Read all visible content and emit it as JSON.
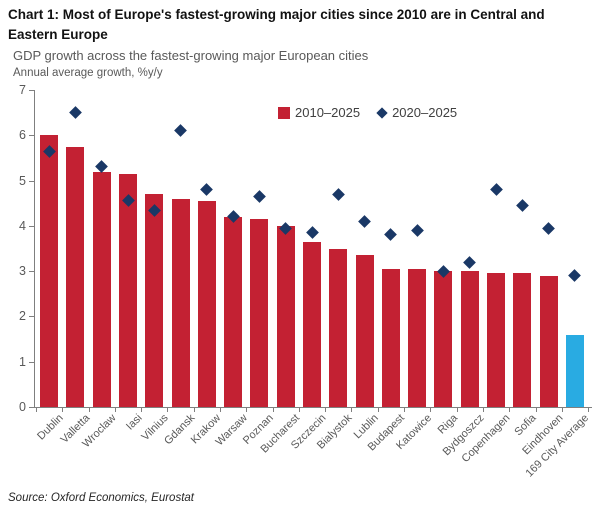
{
  "header": {
    "title": "Chart 1: Most of Europe's fastest-growing major cities since 2010 are in Central and Eastern Europe",
    "subtitle": "GDP growth across the fastest-growing major European cities",
    "axis_note": "Annual average growth, %y/y"
  },
  "legend": {
    "series1_label": "2010–2025",
    "series2_label": "2020–2025"
  },
  "footer": {
    "source": "Source: Oxford Economics, Eurostat"
  },
  "chart_data": {
    "type": "bar",
    "title": "Chart 1: Most of Europe's fastest-growing major cities since 2010 are in Central and Eastern Europe",
    "subtitle": "GDP growth across the fastest-growing major European cities",
    "ylabel": "Annual average growth, %y/y",
    "ylim": [
      0,
      7
    ],
    "ytick_step": 1,
    "grid": false,
    "legend_position": "top-inside",
    "categories": [
      "Dublin",
      "Valletta",
      "Wroclaw",
      "Iasi",
      "Vilnius",
      "Gdansk",
      "Krakow",
      "Warsaw",
      "Poznan",
      "Bucharest",
      "Szczecin",
      "Bialystok",
      "Lublin",
      "Budapest",
      "Katowice",
      "Riga",
      "Bydgoszcz",
      "Copenhagen",
      "Sofia",
      "Eindhoven",
      "169 City Average"
    ],
    "series": [
      {
        "name": "2010–2025",
        "type": "bar",
        "values": [
          6.0,
          5.75,
          5.2,
          5.15,
          4.7,
          4.6,
          4.55,
          4.2,
          4.15,
          4.0,
          3.65,
          3.5,
          3.35,
          3.05,
          3.05,
          3.0,
          3.0,
          2.95,
          2.95,
          2.9,
          1.6
        ]
      },
      {
        "name": "2020–2025",
        "type": "scatter",
        "marker": "diamond",
        "values": [
          5.65,
          6.5,
          5.3,
          4.55,
          4.35,
          6.1,
          4.8,
          4.2,
          4.65,
          3.95,
          3.85,
          4.7,
          4.1,
          3.8,
          3.9,
          3.0,
          3.2,
          4.8,
          4.45,
          3.95,
          2.9
        ]
      }
    ],
    "highlight_category": "169 City Average",
    "colors": {
      "bar": "#c32133",
      "bar_highlight": "#29abe2",
      "marker": "#1a3866",
      "axis": "#7f7f7f",
      "axis_text": "#595959",
      "title_text": "#121212",
      "legend_text": "#404040"
    }
  }
}
